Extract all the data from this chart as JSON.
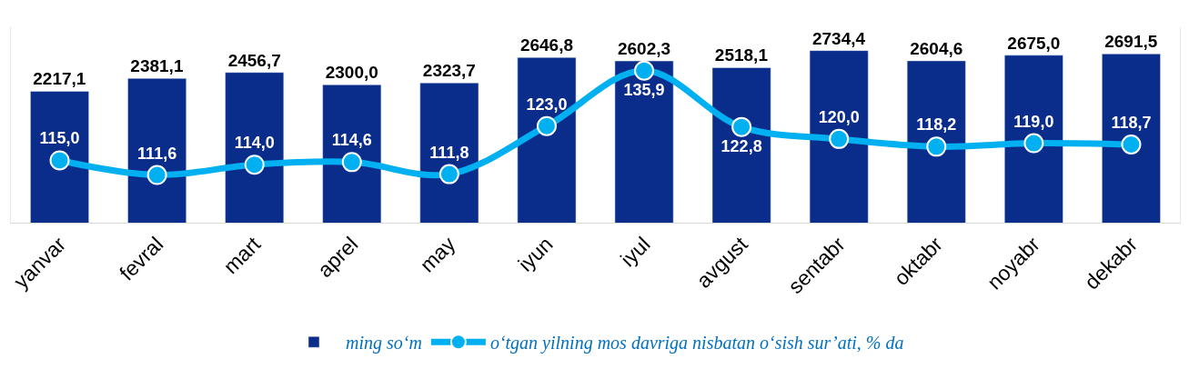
{
  "chart_data": {
    "type": "bar",
    "categories": [
      "yanvar",
      "fevral",
      "mart",
      "aprel",
      "may",
      "iyun",
      "iyul",
      "avgust",
      "sentabr",
      "oktabr",
      "noyabr",
      "dekabr"
    ],
    "series": [
      {
        "name": "ming so‘m",
        "color": "#0a2d8c",
        "values": [
          2217.1,
          2381.1,
          2456.7,
          2300.0,
          2323.7,
          2646.8,
          2602.3,
          2518.1,
          2734.4,
          2604.6,
          2675.0,
          2691.5
        ],
        "value_labels": [
          "2217,1",
          "2381,1",
          "2456,7",
          "2300,0",
          "2323,7",
          "2646,8",
          "2602,3",
          "2518,1",
          "2734,4",
          "2604,6",
          "2675,0",
          "2691,5"
        ]
      },
      {
        "name": "o‘tgan yilning mos davriga nisbatan o‘sish sur’ati, % da",
        "type": "line",
        "axis": "y2",
        "color": "#00b0f0",
        "marker": "circle",
        "line_style": "solid",
        "values": [
          115.0,
          111.6,
          114.0,
          114.6,
          111.8,
          123.0,
          135.9,
          122.8,
          120.0,
          118.2,
          119.0,
          118.7
        ],
        "value_labels": [
          "115,0",
          "111,6",
          "114,0",
          "114,6",
          "111,8",
          "123,0",
          "135,9",
          "122,8",
          "120,0",
          "118,2",
          "119,0",
          "118,7"
        ]
      }
    ],
    "ylim": [
      550,
      3030
    ],
    "y2lim": [
      100.5,
      146
    ],
    "tick_labels": "x",
    "legend": "bottom"
  }
}
